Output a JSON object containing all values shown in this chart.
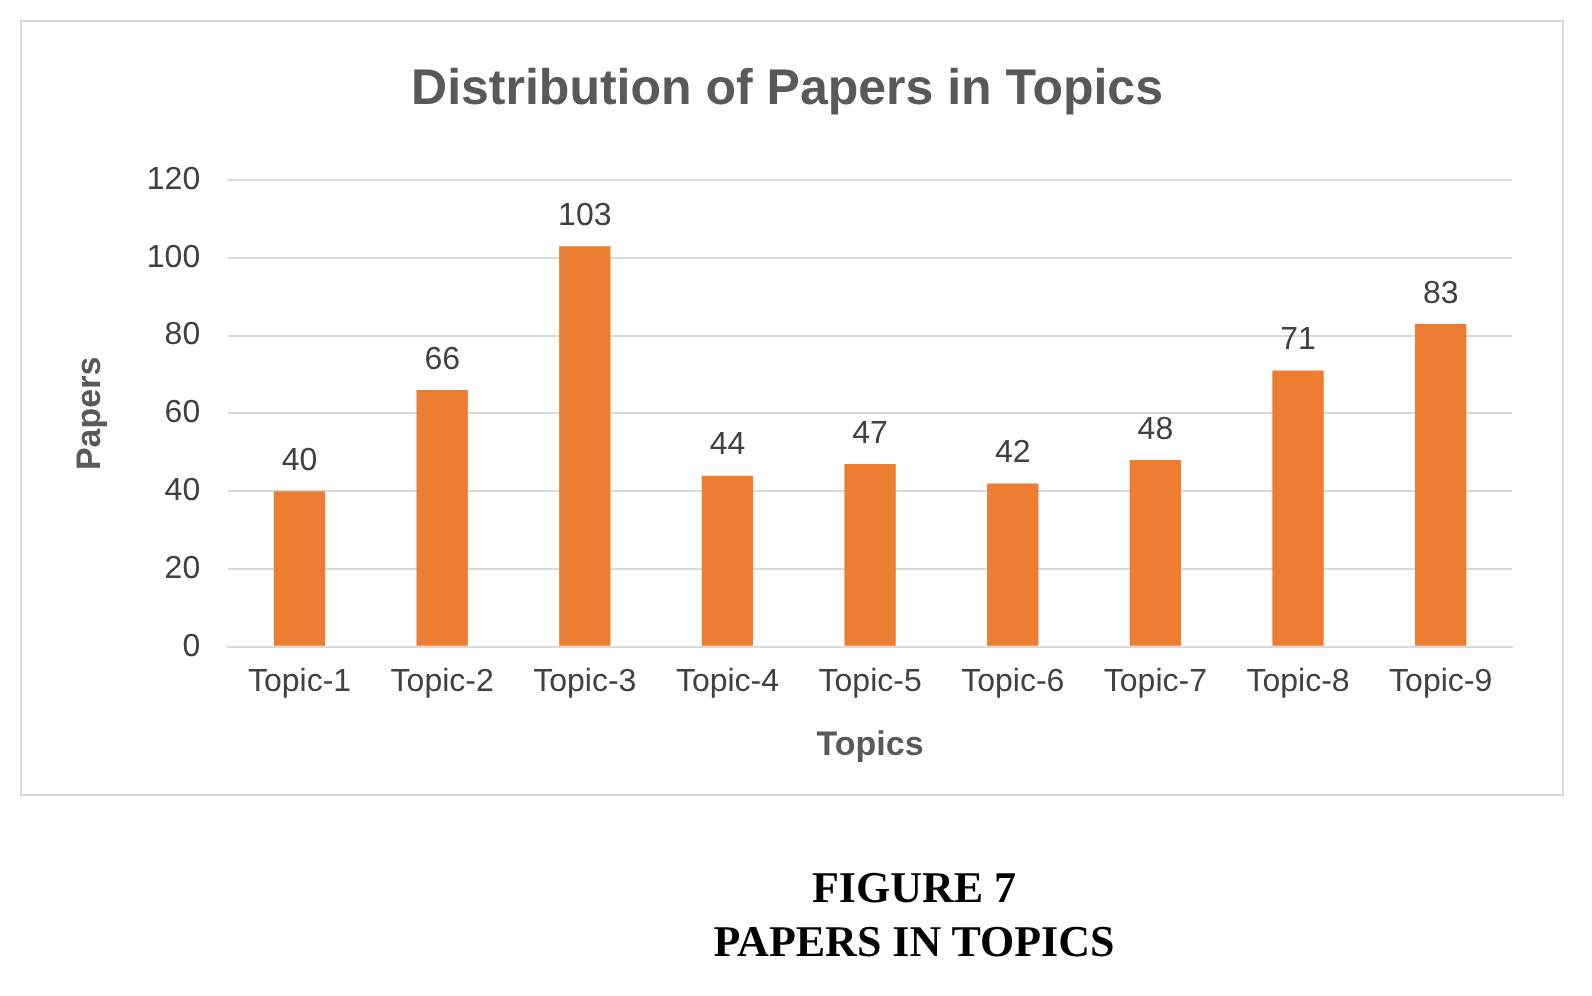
{
  "chart_data": {
    "type": "bar",
    "title": "Distribution of Papers in Topics",
    "xlabel": "Topics",
    "ylabel": "Papers",
    "categories": [
      "Topic-1",
      "Topic-2",
      "Topic-3",
      "Topic-4",
      "Topic-5",
      "Topic-6",
      "Topic-7",
      "Topic-8",
      "Topic-9"
    ],
    "values": [
      40,
      66,
      103,
      44,
      47,
      42,
      48,
      71,
      83
    ],
    "color": "#ed7d31",
    "ylim": [
      0,
      120
    ],
    "yticks": [
      0,
      20,
      40,
      60,
      80,
      100,
      120
    ],
    "grid": "y",
    "legend": false,
    "data_labels": true,
    "annotations": [
      "FIGURE 7",
      "PAPERS IN TOPICS"
    ]
  }
}
